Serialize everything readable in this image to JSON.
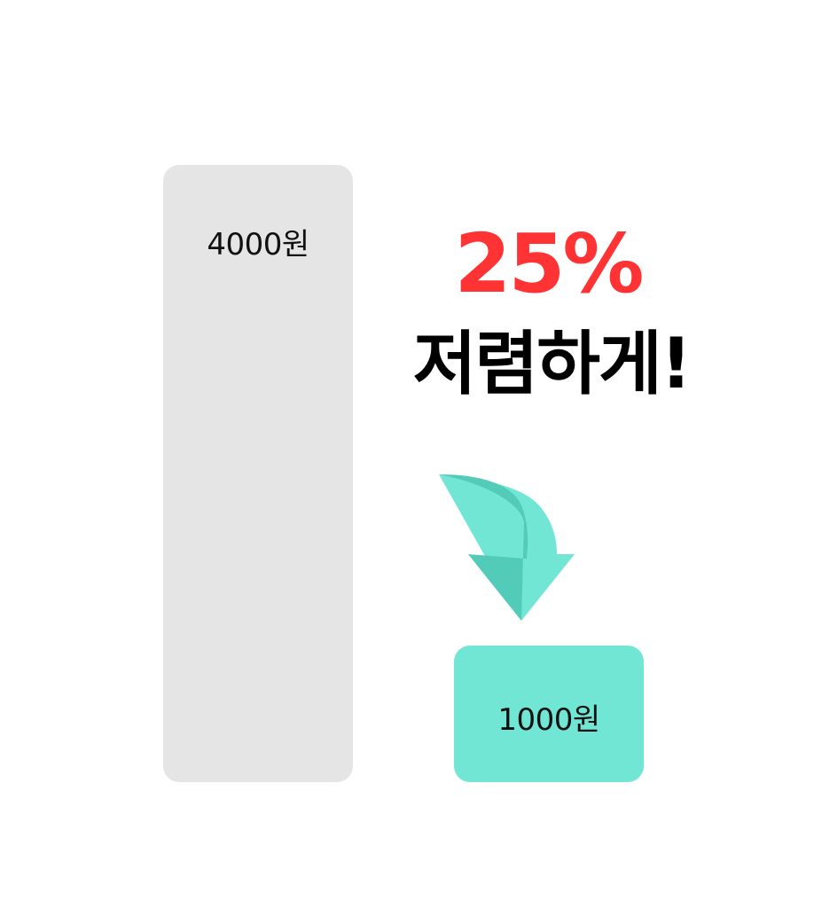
{
  "chart_data": {
    "type": "bar",
    "categories": [
      "4000원",
      "1000원"
    ],
    "values": [
      4000,
      1000
    ],
    "data_labels": [
      "4000원",
      "1000원"
    ],
    "ylim": [
      0,
      4000
    ],
    "grid": false,
    "colors": [
      "#e5e5e5",
      "#72e6d4"
    ]
  },
  "headline": {
    "percent": "25%",
    "text": "저렴하게!",
    "percent_color": "#ff3333"
  },
  "arrow": {
    "icon": "curved-down-arrow-icon",
    "color_light": "#72e6d4",
    "color_dark": "#52cbb8"
  }
}
